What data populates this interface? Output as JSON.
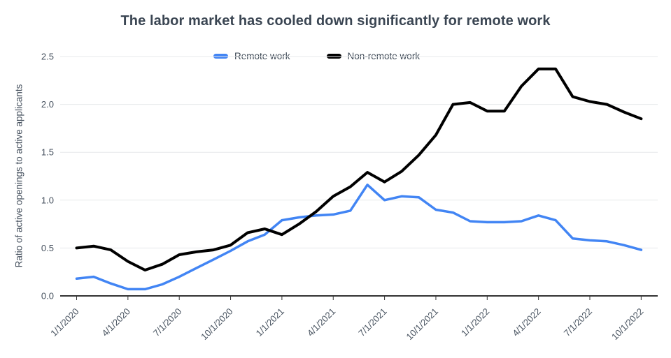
{
  "chart_data": {
    "type": "line",
    "title": "The labor market has cooled down significantly for remote work",
    "ylabel": "Ratio of active openings to active applicants",
    "xlabel": "",
    "x": [
      "1/1/2020",
      "2/1/2020",
      "3/1/2020",
      "4/1/2020",
      "5/1/2020",
      "6/1/2020",
      "7/1/2020",
      "8/1/2020",
      "9/1/2020",
      "10/1/2020",
      "11/1/2020",
      "12/1/2020",
      "1/1/2021",
      "2/1/2021",
      "3/1/2021",
      "4/1/2021",
      "5/1/2021",
      "6/1/2021",
      "7/1/2021",
      "8/1/2021",
      "9/1/2021",
      "10/1/2021",
      "11/1/2021",
      "12/1/2021",
      "1/1/2022",
      "2/1/2022",
      "3/1/2022",
      "4/1/2022",
      "5/1/2022",
      "6/1/2022",
      "7/1/2022",
      "8/1/2022",
      "9/1/2022",
      "10/1/2022"
    ],
    "series": [
      {
        "name": "Remote work",
        "color": "#4285F4",
        "values": [
          0.18,
          0.2,
          0.13,
          0.07,
          0.07,
          0.12,
          0.2,
          0.29,
          0.38,
          0.47,
          0.57,
          0.64,
          0.79,
          0.82,
          0.84,
          0.85,
          0.89,
          1.16,
          1.0,
          1.04,
          1.03,
          0.9,
          0.87,
          0.78,
          0.77,
          0.77,
          0.78,
          0.84,
          0.79,
          0.6,
          0.58,
          0.57,
          0.53,
          0.48
        ]
      },
      {
        "name": "Non-remote work",
        "color": "#000000",
        "values": [
          0.5,
          0.52,
          0.48,
          0.36,
          0.27,
          0.33,
          0.43,
          0.46,
          0.48,
          0.53,
          0.66,
          0.7,
          0.64,
          0.75,
          0.88,
          1.04,
          1.14,
          1.29,
          1.19,
          1.3,
          1.47,
          1.68,
          2.0,
          2.02,
          1.93,
          1.93,
          2.19,
          2.37,
          2.37,
          2.08,
          2.03,
          2.0,
          1.92,
          1.85
        ]
      }
    ],
    "x_tick_labels": [
      "1/1/2020",
      "4/1/2020",
      "7/1/2020",
      "10/1/2020",
      "1/1/2021",
      "4/1/2021",
      "7/1/2021",
      "10/1/2021",
      "1/1/2022",
      "4/1/2022",
      "7/1/2022",
      "10/1/2022"
    ],
    "x_tick_indices": [
      0,
      3,
      6,
      9,
      12,
      15,
      18,
      21,
      24,
      27,
      30,
      33
    ],
    "y_ticks": [
      "0.0",
      "0.5",
      "1.0",
      "1.5",
      "2.0",
      "2.5"
    ],
    "ylim": [
      0,
      2.5
    ],
    "grid": "horizontal",
    "legend_position": "top-center",
    "colors": {
      "grid_line": "#e7e9eb",
      "axis_line": "#333333",
      "tick_label": "#47525f",
      "title_text": "#3b4653"
    }
  }
}
